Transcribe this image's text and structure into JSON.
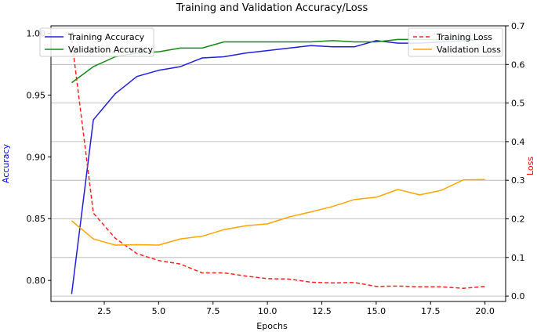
{
  "chart_data": {
    "type": "line",
    "title": "Training and Validation Accuracy/Loss",
    "xlabel": "Epochs",
    "ylabel_left": "Accuracy",
    "ylabel_right": "Loss",
    "xlim": [
      0.05,
      20.95
    ],
    "ylim_left": [
      0.783,
      1.006
    ],
    "ylim_right": [
      -0.014,
      0.7
    ],
    "x_ticks": [
      2.5,
      5.0,
      7.5,
      10.0,
      12.5,
      15.0,
      17.5,
      20.0
    ],
    "x_tick_labels": [
      "2.5",
      "5.0",
      "7.5",
      "10.0",
      "12.5",
      "15.0",
      "17.5",
      "20.0"
    ],
    "y_left_ticks": [
      0.8,
      0.85,
      0.9,
      0.95,
      1.0
    ],
    "y_left_tick_labels": [
      "0.80",
      "0.85",
      "0.90",
      "0.95",
      "1.00"
    ],
    "y_right_ticks": [
      0.0,
      0.1,
      0.2,
      0.3,
      0.4,
      0.5,
      0.6,
      0.7
    ],
    "y_right_tick_labels": [
      "0.0",
      "0.1",
      "0.2",
      "0.3",
      "0.4",
      "0.5",
      "0.6",
      "0.7"
    ],
    "grid": true,
    "x": [
      1,
      2,
      3,
      4,
      5,
      6,
      7,
      8,
      9,
      10,
      11,
      12,
      13,
      14,
      15,
      16,
      17,
      18,
      19,
      20
    ],
    "series": [
      {
        "name": "Training Accuracy",
        "axis": "left",
        "color": "#1f1fe0",
        "style": "solid",
        "values": [
          0.789,
          0.93,
          0.951,
          0.965,
          0.97,
          0.973,
          0.98,
          0.981,
          0.984,
          0.986,
          0.988,
          0.99,
          0.989,
          0.989,
          0.994,
          0.992,
          0.992,
          0.993,
          0.994,
          0.995
        ]
      },
      {
        "name": "Validation Accuracy",
        "axis": "left",
        "color": "#138a13",
        "style": "solid",
        "values": [
          0.96,
          0.973,
          0.981,
          0.984,
          0.985,
          0.988,
          0.988,
          0.993,
          0.993,
          0.993,
          0.993,
          0.993,
          0.994,
          0.993,
          0.993,
          0.995,
          0.995,
          0.995,
          0.995,
          0.995
        ]
      },
      {
        "name": "Training Loss",
        "axis": "right",
        "color": "#ff2020",
        "style": "dashed",
        "values": [
          0.665,
          0.215,
          0.15,
          0.11,
          0.092,
          0.083,
          0.06,
          0.06,
          0.052,
          0.045,
          0.044,
          0.036,
          0.034,
          0.035,
          0.025,
          0.026,
          0.024,
          0.024,
          0.02,
          0.025
        ]
      },
      {
        "name": "Validation Loss",
        "axis": "right",
        "color": "#ffa500",
        "style": "solid",
        "values": [
          0.195,
          0.148,
          0.132,
          0.133,
          0.132,
          0.148,
          0.155,
          0.172,
          0.182,
          0.187,
          0.205,
          0.218,
          0.232,
          0.25,
          0.256,
          0.276,
          0.262,
          0.274,
          0.301,
          0.302
        ]
      }
    ],
    "legend_left": {
      "placement": "upper-left",
      "entries": [
        "Training Accuracy",
        "Validation Accuracy"
      ]
    },
    "legend_right": {
      "placement": "upper-right",
      "entries": [
        "Training Loss",
        "Validation Loss"
      ]
    }
  }
}
